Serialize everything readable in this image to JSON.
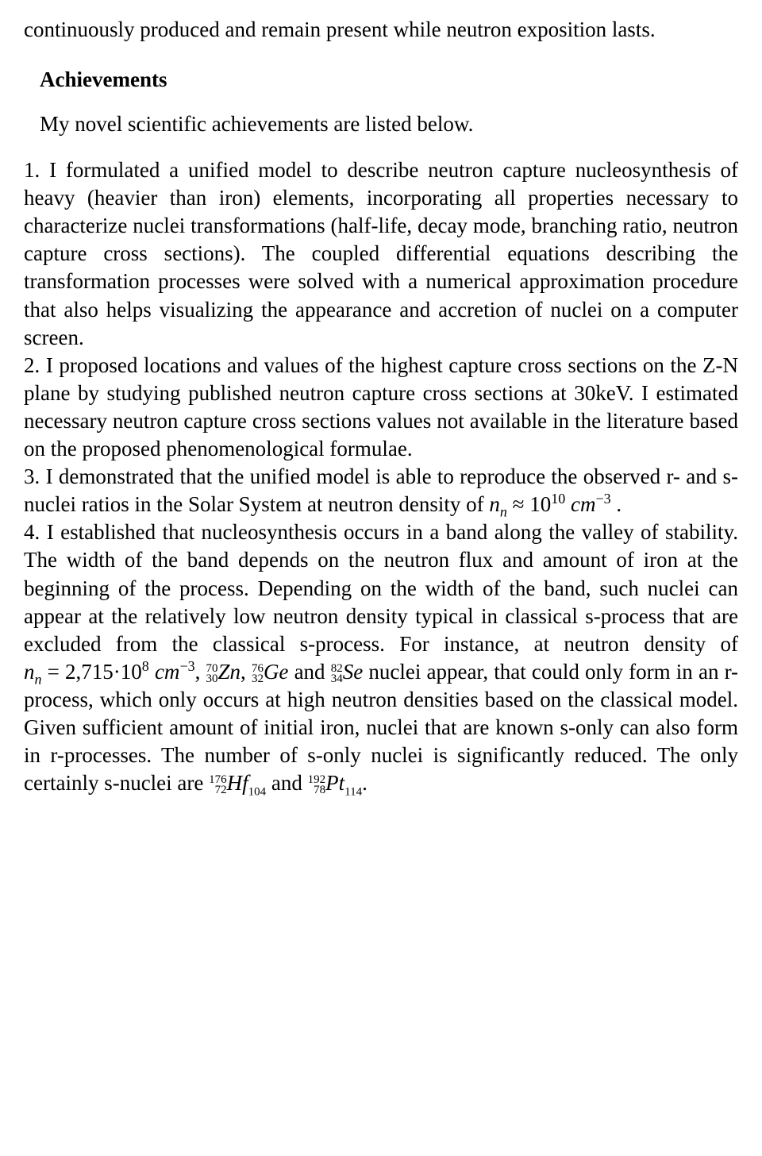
{
  "intro": "continuously produced and remain present while neutron exposition lasts.",
  "section_title": "Achievements",
  "subhead": "My novel scientific achievements are listed below.",
  "items": {
    "n1_num": "1.",
    "n1_body": "I formulated a unified model to describe neutron capture nucleosynthesis of heavy (heavier than iron) elements, incorporating all properties necessary to characterize nuclei transformations (half-life, decay mode, branching ratio, neutron capture cross sections). The coupled differential equations describing the transformation processes were solved with a numerical approximation procedure that also helps visualizing the appearance and accretion of nuclei on a computer screen.",
    "n2_num": "2.",
    "n2_body": "I proposed locations and values of the highest capture cross sections on the Z-N plane by studying published neutron capture cross sections at 30keV. I estimated necessary neutron capture cross sections values not available in the literature based on the proposed phenomenological formulae.",
    "n3_num": "3.",
    "n3_body_a": "I demonstrated that the unified model is able to reproduce the observed r- and s-nuclei ratios in the Solar System at neutron density of ",
    "n3_period": ".",
    "n4_num": "4.",
    "n4_a": "I established that nucleosynthesis occurs in a band along the valley of stability. The width of the band depends on the neutron flux and amount of iron at the beginning of the process. Depending on the width of the band, such nuclei can appear at the relatively low neutron density typical in classical s-process that are excluded from the classical s-process. For instance, at neutron density of ",
    "n4_b": "and ",
    "n4_c": "nuclei appear, that could only form in an r-process, which only occurs at high neutron densities based on the classical model. Given sufficient amount of initial iron, nuclei that are known s-only can also form in r-processes. The number of s-only nuclei is significantly reduced. The only certainly s-nuclei are ",
    "n4_and2": "and ",
    "n4_final_period": "."
  },
  "formulas": {
    "nn_sym": "n",
    "nn_sub": "n",
    "approx": "≈",
    "eq": "=",
    "times": "·",
    "e10": "10",
    "p10": "10",
    "cm": "cm",
    "m3": "−3",
    "n3_val_base": "10",
    "n3_val_exp": "10",
    "n4_val": "2,715",
    "n4_e_base": "10",
    "n4_e_exp": "8",
    "Zn_pre_top": "70",
    "Zn_pre_bot": "30",
    "Zn": "Zn",
    "Ge_pre_top": "76",
    "Ge_pre_bot": "32",
    "Ge": "Ge",
    "Se_pre_top": "82",
    "Se_pre_bot": "34",
    "Se": "Se",
    "Hf_pre_top": "176",
    "Hf_pre_bot": "72",
    "Hf": "Hf",
    "Hf_sub": "104",
    "Pt_pre_top": "192",
    "Pt_pre_bot": "78",
    "Pt": "Pt",
    "Pt_sub": "114",
    "comma": ", "
  }
}
